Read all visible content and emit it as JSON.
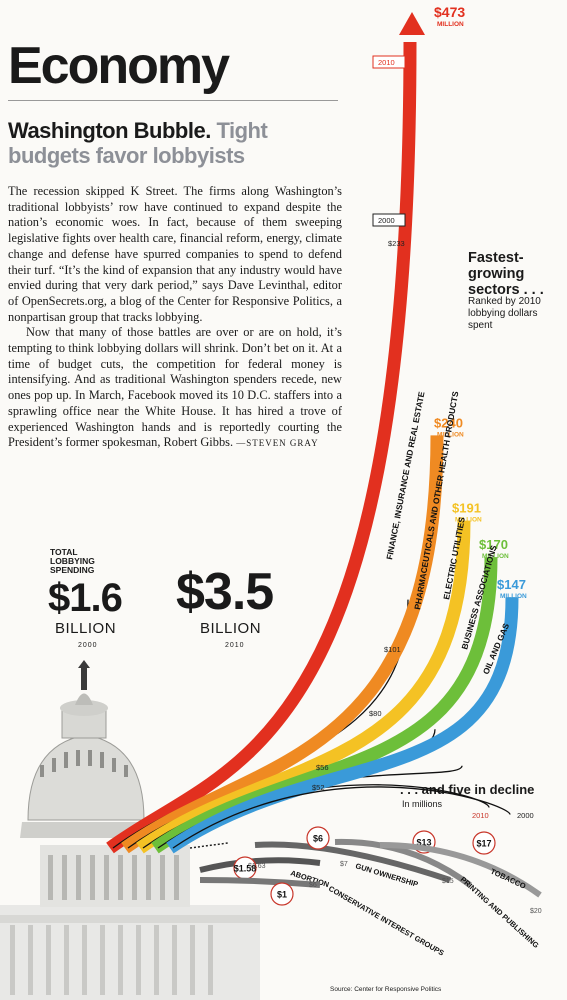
{
  "section": "Economy",
  "headline": {
    "bold": "Washington Bubble.",
    "grey": "Tight budgets favor lobbyists"
  },
  "body": {
    "p1": "The recession skipped K Street. The firms along Washington’s traditional lobbyists’ row have continued to expand despite the nation’s economic woes. In fact, because of them sweeping legislative fights over health care, financial reform, energy, climate change and defense have spurred companies to spend to defend their turf. “It’s the kind of expansion that any industry would have envied during that very dark period,” says Dave Levinthal, editor of OpenSecrets.org, a blog of the Center for Responsive Politics, a nonpartisan group that tracks lobbying.",
    "p2": "Now that many of those battles are over or are on hold, it’s tempting to think lobbying dollars will shrink. Don’t bet on it. At a time of budget cuts, the competition for federal money is intensifying. And as traditional Washington spenders recede, new ones pop up. In March, Facebook moved its 10 D.C. staffers into a sprawling office near the White House. It has hired a trove of experienced Washington hands and is reportedly courting the President’s former spokesman, Robert Gibbs.",
    "byline": "—STEVEN GRAY"
  },
  "totals": {
    "label": "TOTAL LOBBYING SPENDING",
    "v2000": "$1.6",
    "v2010": "$3.5",
    "unit": "BILLION",
    "y2000": "2000",
    "y2010": "2010"
  },
  "fastest": {
    "title": "Fastest-growing sectors . . .",
    "sub": "Ranked by 2010 lobbying dollars spent"
  },
  "decline": {
    "title": ". . . and five in decline",
    "sub": "In millions",
    "y2010": "2010",
    "y2000": "2000"
  },
  "source": "Source: Center for Responsive Politics",
  "colors": {
    "finance": "#e2301f",
    "pharma": "#ef8a22",
    "electric": "#f4c224",
    "business": "#6dbf3a",
    "oil": "#3a9ad9"
  },
  "chart_data": [
    {
      "type": "line",
      "title": "Fastest-growing sectors . . .",
      "x": [
        "2000",
        "2010"
      ],
      "ylabel": "millions",
      "series": [
        {
          "name": "FINANCE, INSURANCE AND REAL ESTATE",
          "values": [
            233,
            473
          ],
          "label2000": "$233",
          "label2010": "$473",
          "unit": "MILLION",
          "color": "#e2301f"
        },
        {
          "name": "PHARMACEUTICALS AND OTHER HEALTH PRODUCTS",
          "values": [
            101,
            240
          ],
          "label2000": "$101",
          "label2010": "$240",
          "unit": "MILLION",
          "color": "#ef8a22"
        },
        {
          "name": "ELECTRIC UTILITIES",
          "values": [
            80,
            191
          ],
          "label2000": "$80",
          "label2010": "$191",
          "unit": "MILLION",
          "color": "#f4c224"
        },
        {
          "name": "BUSINESS ASSOCIATIONS",
          "values": [
            56,
            170
          ],
          "label2000": "$56",
          "label2010": "$170",
          "unit": "MILLION",
          "color": "#6dbf3a"
        },
        {
          "name": "OIL AND GAS",
          "values": [
            52,
            147
          ],
          "label2000": "$52",
          "label2010": "$147",
          "unit": "MILLION",
          "color": "#3a9ad9"
        }
      ]
    },
    {
      "type": "line",
      "title": ". . . and five in decline",
      "x": [
        "2000",
        "2010"
      ],
      "ylabel": "In millions",
      "series": [
        {
          "name": "ABORTION",
          "values": [
            1.63,
            1.58
          ],
          "label2000": "$1.63",
          "label2010": "$1.58"
        },
        {
          "name": "CONSERVATIVE INTEREST GROUPS",
          "values": [
            6,
            1
          ],
          "label2000": "$6",
          "label2010": "$1"
        },
        {
          "name": "GUN OWNERSHIP",
          "values": [
            7,
            6
          ],
          "label2000": "$7",
          "label2010": "$6"
        },
        {
          "name": "PRINTING AND PUBLISHING",
          "values": [
            15,
            13
          ],
          "label2000": "$15",
          "label2010": "$13"
        },
        {
          "name": "TOBACCO",
          "values": [
            20,
            17
          ],
          "label2000": "$20",
          "label2010": "$17"
        }
      ]
    }
  ]
}
